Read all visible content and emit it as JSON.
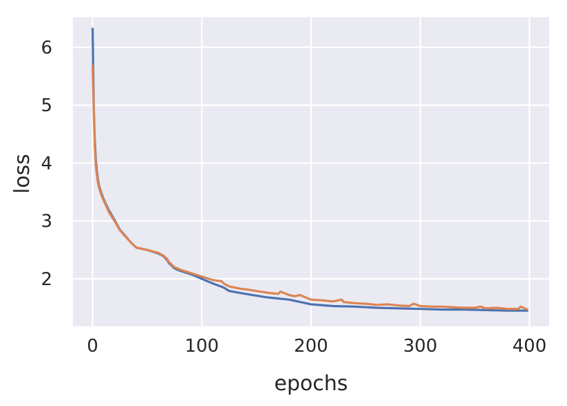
{
  "chart_data": {
    "type": "line",
    "title": "",
    "xlabel": "epochs",
    "ylabel": "loss",
    "xlim": [
      -18,
      418
    ],
    "ylim": [
      1.18,
      6.52
    ],
    "xticks": [
      0,
      100,
      200,
      300,
      400
    ],
    "yticks": [
      2,
      3,
      4,
      5,
      6
    ],
    "grid": true,
    "legend": "none",
    "colors": {
      "background": "#eaeaf2",
      "grid": "#ffffff",
      "series_1": "#4c72b0",
      "series_2": "#dd8452",
      "text": "#262626"
    },
    "series": [
      {
        "x": [
          0,
          1,
          2,
          3,
          4,
          5,
          6,
          8,
          10,
          12,
          15,
          20,
          25,
          30,
          35,
          40,
          50,
          60,
          65,
          68,
          70,
          75,
          80,
          90,
          100,
          110,
          120,
          125,
          140,
          160,
          180,
          190,
          200,
          220,
          240,
          260,
          280,
          300,
          320,
          340,
          360,
          380,
          398
        ],
        "y": [
          6.32,
          5.0,
          4.4,
          4.05,
          3.85,
          3.7,
          3.6,
          3.48,
          3.38,
          3.3,
          3.18,
          3.02,
          2.85,
          2.74,
          2.63,
          2.54,
          2.5,
          2.44,
          2.39,
          2.33,
          2.27,
          2.18,
          2.14,
          2.08,
          2.0,
          1.92,
          1.85,
          1.79,
          1.74,
          1.68,
          1.64,
          1.6,
          1.56,
          1.53,
          1.52,
          1.5,
          1.49,
          1.48,
          1.47,
          1.47,
          1.46,
          1.45,
          1.45
        ]
      },
      {
        "x": [
          0,
          1,
          2,
          3,
          4,
          5,
          6,
          8,
          10,
          12,
          15,
          20,
          25,
          30,
          35,
          40,
          50,
          60,
          65,
          68,
          70,
          75,
          80,
          90,
          100,
          110,
          118,
          120,
          125,
          130,
          135,
          140,
          150,
          160,
          170,
          172,
          180,
          185,
          190,
          200,
          210,
          220,
          228,
          230,
          240,
          250,
          260,
          270,
          280,
          290,
          294,
          300,
          310,
          320,
          330,
          340,
          350,
          355,
          360,
          370,
          380,
          390,
          392,
          398
        ],
        "y": [
          5.68,
          4.9,
          4.3,
          3.95,
          3.78,
          3.65,
          3.57,
          3.45,
          3.36,
          3.28,
          3.15,
          3.0,
          2.84,
          2.73,
          2.63,
          2.54,
          2.5,
          2.45,
          2.4,
          2.35,
          2.29,
          2.2,
          2.16,
          2.1,
          2.04,
          1.98,
          1.96,
          1.92,
          1.87,
          1.85,
          1.83,
          1.82,
          1.79,
          1.76,
          1.74,
          1.78,
          1.72,
          1.7,
          1.72,
          1.64,
          1.63,
          1.61,
          1.64,
          1.6,
          1.58,
          1.57,
          1.55,
          1.56,
          1.54,
          1.53,
          1.57,
          1.53,
          1.52,
          1.52,
          1.51,
          1.5,
          1.5,
          1.52,
          1.49,
          1.5,
          1.48,
          1.48,
          1.52,
          1.47
        ]
      }
    ]
  }
}
